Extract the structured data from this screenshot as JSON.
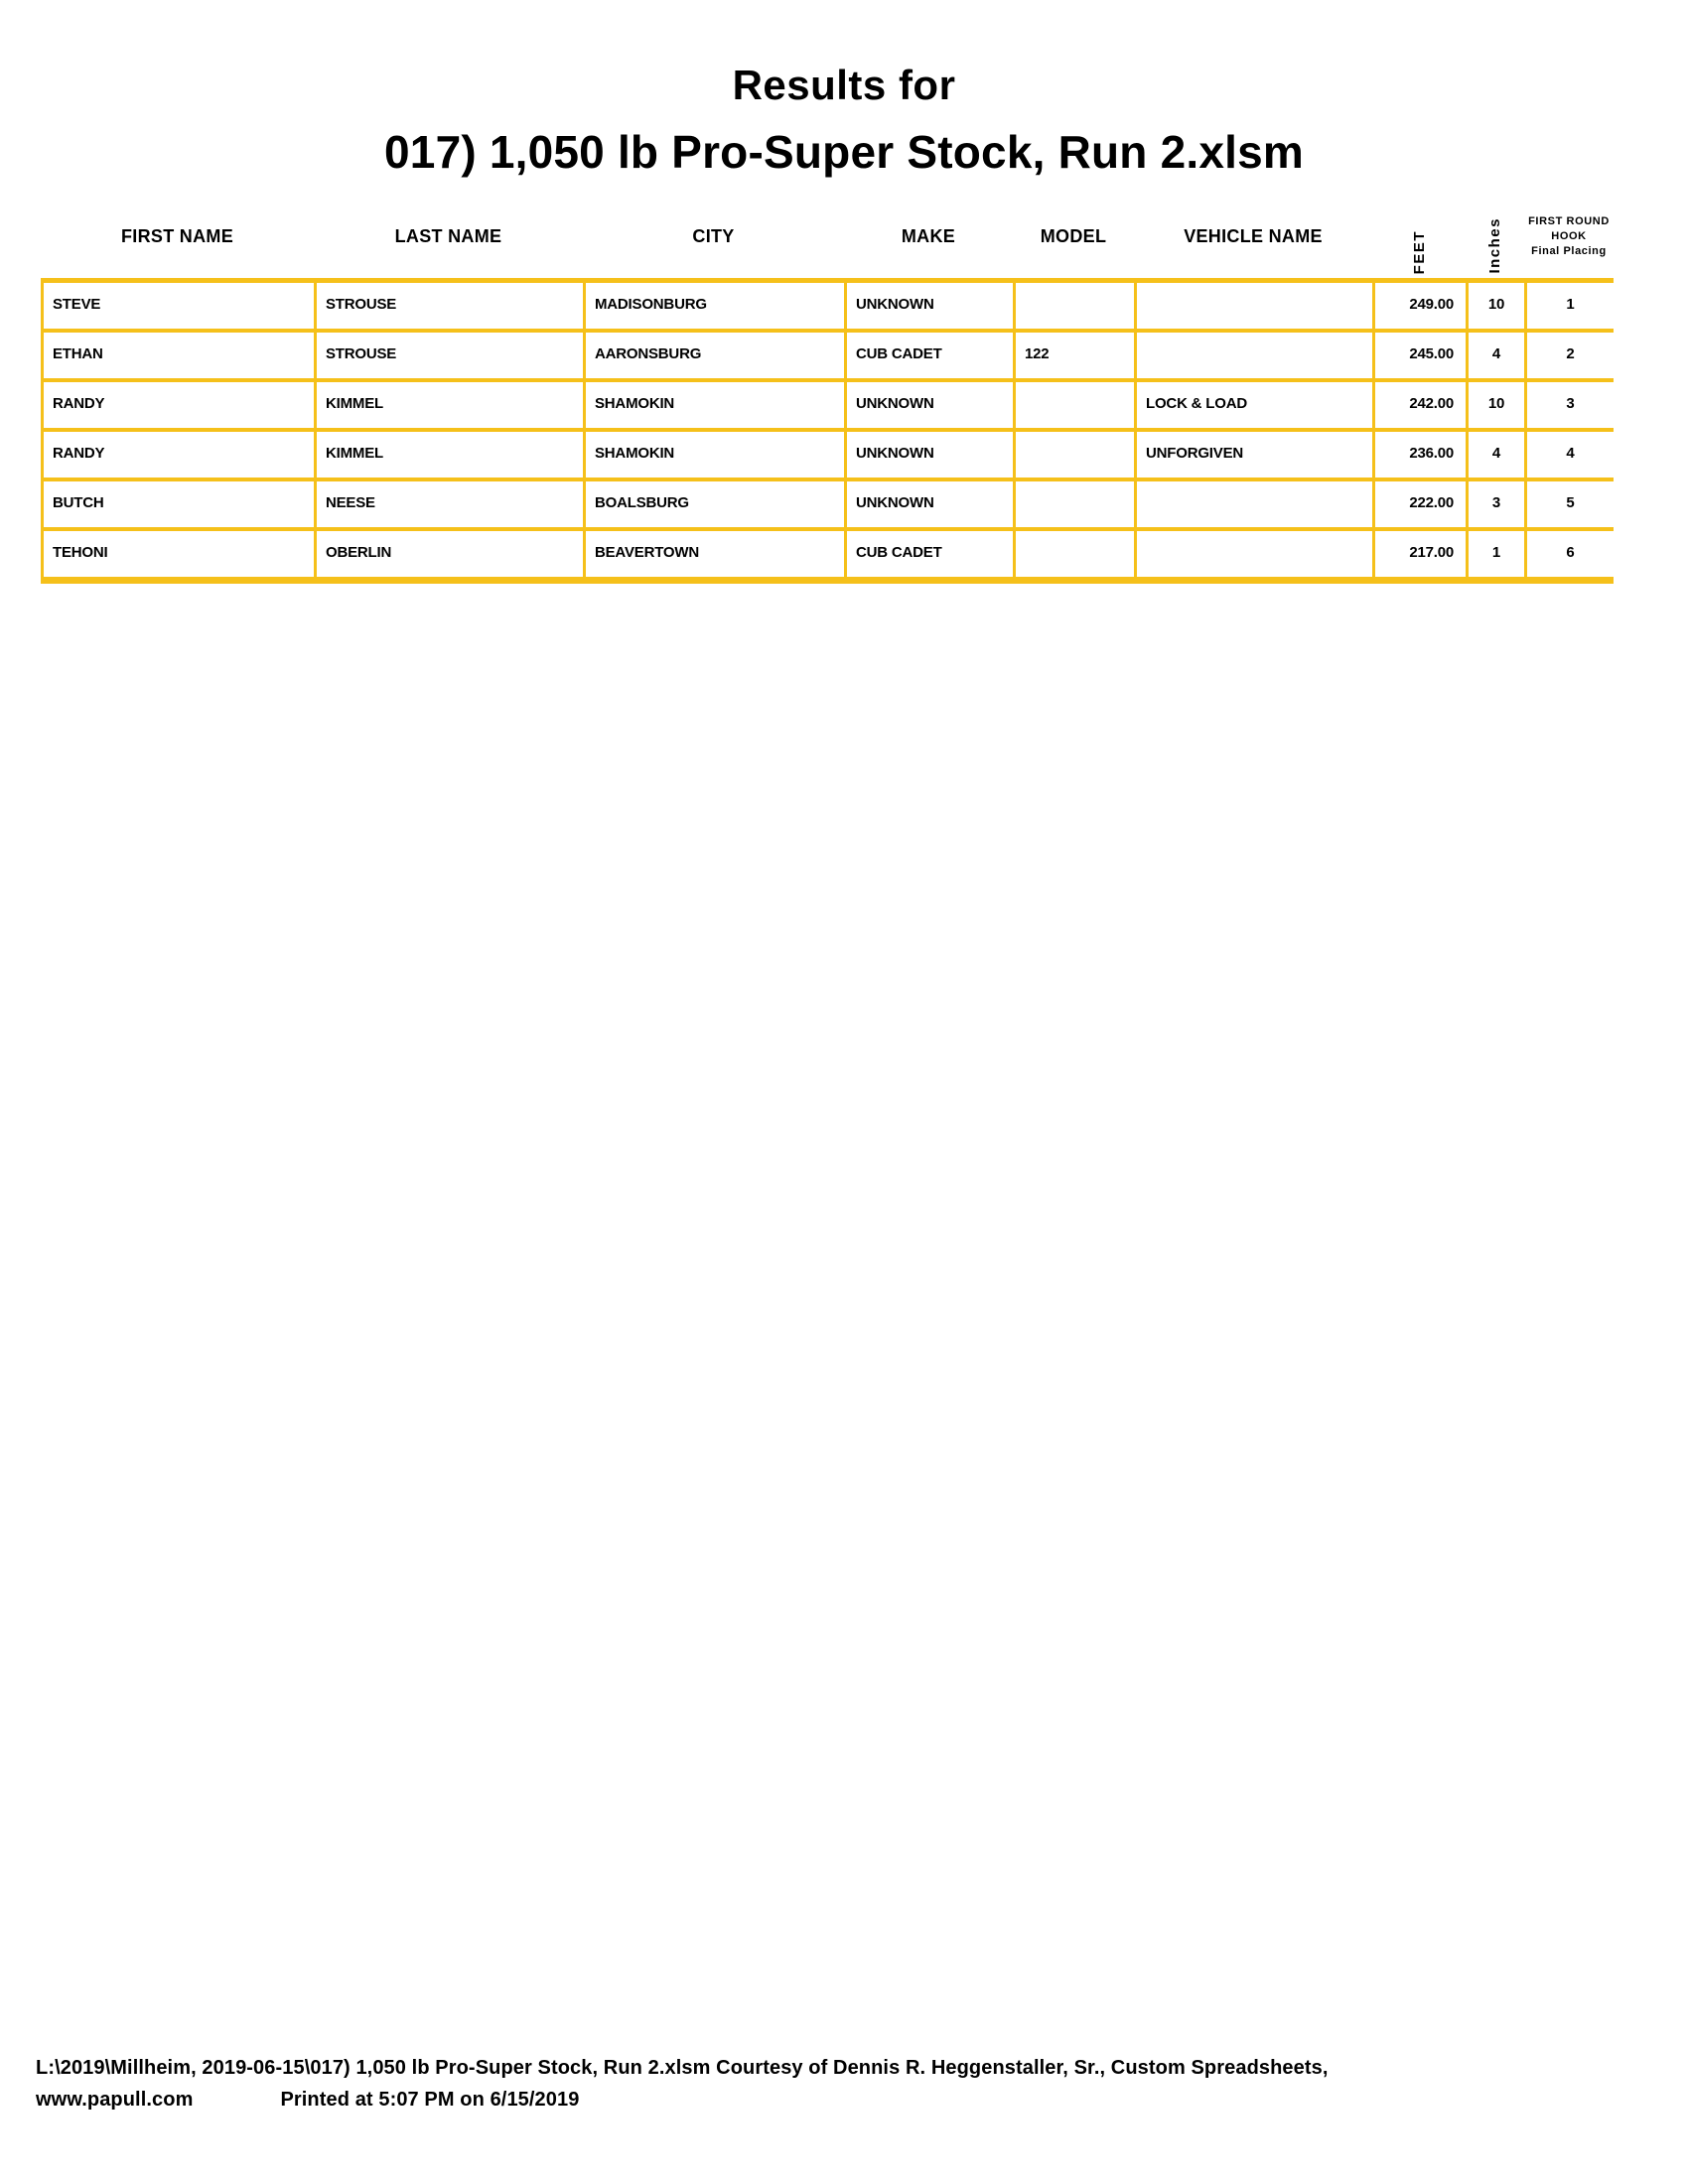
{
  "page": {
    "title_line1": "Results for",
    "title_line2": "017) 1,050 lb Pro-Super Stock, Run 2.xlsm"
  },
  "table": {
    "columns": [
      {
        "key": "first_name",
        "label": "FIRST NAME"
      },
      {
        "key": "last_name",
        "label": "LAST NAME"
      },
      {
        "key": "city",
        "label": "CITY"
      },
      {
        "key": "make",
        "label": "MAKE"
      },
      {
        "key": "model",
        "label": "MODEL"
      },
      {
        "key": "vehicle_name",
        "label": "VEHICLE NAME"
      },
      {
        "key": "feet",
        "label": "FEET",
        "rotated": true
      },
      {
        "key": "inches",
        "label": "Inches",
        "rotated": true
      },
      {
        "key": "placing",
        "label_lines": [
          "FIRST ROUND",
          "HOOK",
          "Final Placing"
        ]
      }
    ],
    "rows": [
      {
        "first_name": "STEVE",
        "last_name": "STROUSE",
        "city": "MADISONBURG",
        "make": "UNKNOWN",
        "model": "",
        "vehicle_name": "",
        "feet": "249.00",
        "inches": "10",
        "placing": "1"
      },
      {
        "first_name": "ETHAN",
        "last_name": "STROUSE",
        "city": "AARONSBURG",
        "make": "CUB CADET",
        "model": "122",
        "vehicle_name": "",
        "feet": "245.00",
        "inches": "4",
        "placing": "2"
      },
      {
        "first_name": "RANDY",
        "last_name": "KIMMEL",
        "city": "SHAMOKIN",
        "make": "UNKNOWN",
        "model": "",
        "vehicle_name": "LOCK & LOAD",
        "feet": "242.00",
        "inches": "10",
        "placing": "3"
      },
      {
        "first_name": "RANDY",
        "last_name": "KIMMEL",
        "city": "SHAMOKIN",
        "make": "UNKNOWN",
        "model": "",
        "vehicle_name": "UNFORGIVEN",
        "feet": "236.00",
        "inches": "4",
        "placing": "4"
      },
      {
        "first_name": "BUTCH",
        "last_name": "NEESE",
        "city": "BOALSBURG",
        "make": "UNKNOWN",
        "model": "",
        "vehicle_name": "",
        "feet": "222.00",
        "inches": "3",
        "placing": "5"
      },
      {
        "first_name": "TEHONI",
        "last_name": "OBERLIN",
        "city": "BEAVERTOWN",
        "make": "CUB CADET",
        "model": "",
        "vehicle_name": "",
        "feet": "217.00",
        "inches": "1",
        "placing": "6"
      }
    ]
  },
  "footer": {
    "line1": "L:\\2019\\Millheim, 2019-06-15\\017) 1,050 lb Pro-Super Stock, Run 2.xlsm  Courtesy of Dennis R. Heggenstaller, Sr., Custom Spreadsheets,",
    "line2_left": "www.papull.com",
    "line2_right": "Printed at 5:07 PM on 6/15/2019"
  },
  "colors": {
    "border_gold": "#F5C01A",
    "text": "#000000",
    "background": "#FFFFFF"
  }
}
